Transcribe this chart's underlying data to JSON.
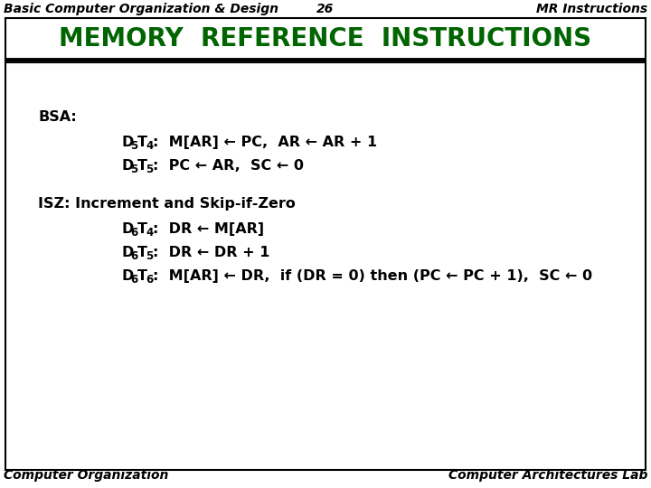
{
  "header_left": "Basic Computer Organization & Design",
  "header_center": "26",
  "header_right": "MR Instructions",
  "title": "MEMORY  REFERENCE  INSTRUCTIONS",
  "title_color": "#006400",
  "footer_left": "Computer Organization",
  "footer_right": "Computer Architectures Lab",
  "bg_color": "#ffffff",
  "box_border_color": "#000000",
  "header_font_size": 10,
  "title_font_size": 20,
  "content_font_size": 11.5,
  "footer_font_size": 10,
  "bsa_label": "BSA:",
  "bsa_line1_sub1": "5",
  "bsa_line1_sub2": "4",
  "bsa_line1_text": ":  M[AR] ← PC,  AR ← AR + 1",
  "bsa_line2_sub1": "5",
  "bsa_line2_sub2": "5",
  "bsa_line2_text": ":  PC ← AR,  SC ← 0",
  "isz_label": "ISZ: Increment and Skip-if-Zero",
  "isz_line1_sub1": "6",
  "isz_line1_sub2": "4",
  "isz_line1_text": ":  DR ← M[AR]",
  "isz_line2_sub1": "6",
  "isz_line2_sub2": "5",
  "isz_line2_text": ":  DR ← DR + 1",
  "isz_line3_sub1": "6",
  "isz_line3_sub2": "6",
  "isz_line3_text": ":  M[AR] ← DR,  if (DR = 0) then (PC ← PC + 1),  SC ← 0"
}
